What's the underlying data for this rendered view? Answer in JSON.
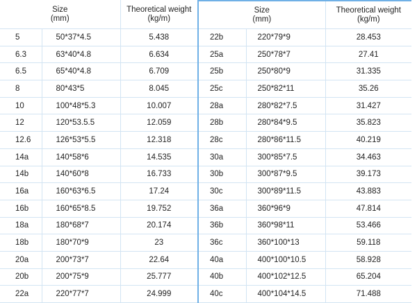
{
  "headers": {
    "size": "Size",
    "size_unit": "(mm)",
    "weight": "Theoretical weight",
    "weight_unit": "(kg/m)"
  },
  "left_rows": [
    [
      "5",
      "50*37*4.5",
      "5.438"
    ],
    [
      "6.3",
      "63*40*4.8",
      "6.634"
    ],
    [
      "6.5",
      "65*40*4.8",
      "6.709"
    ],
    [
      "8",
      "80*43*5",
      "8.045"
    ],
    [
      "10",
      "100*48*5.3",
      "10.007"
    ],
    [
      "12",
      "120*53.5.5",
      "12.059"
    ],
    [
      "12.6",
      "126*53*5.5",
      "12.318"
    ],
    [
      "14a",
      "140*58*6",
      "14.535"
    ],
    [
      "14b",
      "140*60*8",
      "16.733"
    ],
    [
      "16a",
      "160*63*6.5",
      "17.24"
    ],
    [
      "16b",
      "160*65*8.5",
      "19.752"
    ],
    [
      "18a",
      "180*68*7",
      "20.174"
    ],
    [
      "18b",
      "180*70*9",
      "23"
    ],
    [
      "20a",
      "200*73*7",
      "22.64"
    ],
    [
      "20b",
      "200*75*9",
      "25.777"
    ],
    [
      "22a",
      "220*77*7",
      "24.999"
    ]
  ],
  "right_rows": [
    [
      "22b",
      "220*79*9",
      "28.453"
    ],
    [
      "25a",
      "250*78*7",
      "27.41"
    ],
    [
      "25b",
      "250*80*9",
      "31.335"
    ],
    [
      "25c",
      "250*82*11",
      "35.26"
    ],
    [
      "28a",
      "280*82*7.5",
      "31.427"
    ],
    [
      "28b",
      "280*84*9.5",
      "35.823"
    ],
    [
      "28c",
      "280*86*11.5",
      "40.219"
    ],
    [
      "30a",
      "300*85*7.5",
      "34.463"
    ],
    [
      "30b",
      "300*87*9.5",
      "39.173"
    ],
    [
      "30c",
      "300*89*11.5",
      "43.883"
    ],
    [
      "36a",
      "360*96*9",
      "47.814"
    ],
    [
      "36b",
      "360*98*11",
      "53.466"
    ],
    [
      "36c",
      "360*100*13",
      "59.118"
    ],
    [
      "40a",
      "400*100*10.5",
      "58.928"
    ],
    [
      "40b",
      "400*102*12.5",
      "65.204"
    ],
    [
      "40c",
      "400*104*14.5",
      "71.488"
    ]
  ],
  "colors": {
    "grid": "#d2e4f3",
    "divider": "#6fb0e6"
  }
}
